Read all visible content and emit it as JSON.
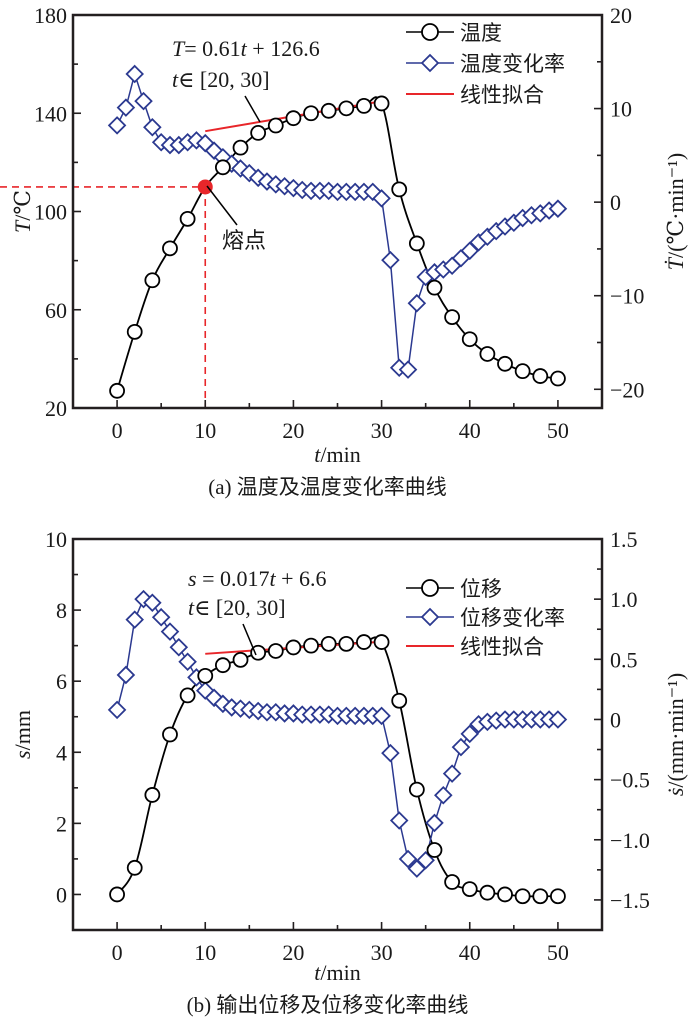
{
  "colors": {
    "primary_series": "#000000",
    "rate_series": "#2b3990",
    "fit_line": "#e8262a",
    "melting_point": "#e8262a",
    "axis": "#231f20"
  },
  "chart_data": [
    {
      "id": "a",
      "type": "line",
      "caption": "(a) 温度及温度变化率曲线",
      "xlabel": {
        "italic": "t",
        "rest": "/min"
      },
      "ylabel_left": {
        "italic": "T",
        "rest": "/℃"
      },
      "ylabel_right": {
        "italic": "Ṫ",
        "rest": "/(℃·min⁻¹)"
      },
      "xlim": [
        -5,
        55
      ],
      "ylim_left": [
        20,
        180
      ],
      "ylim_right": [
        -22,
        20
      ],
      "x_ticks": [
        0,
        10,
        20,
        30,
        40,
        50
      ],
      "x_tick_labels": [
        "0",
        "10",
        "20",
        "30",
        "40",
        "50"
      ],
      "y_left_ticks": [
        20,
        60,
        100,
        140,
        180
      ],
      "y_left_tick_labels": [
        "20",
        "60",
        "100",
        "140",
        "180"
      ],
      "y_right_ticks": [
        -20,
        -10,
        0,
        10,
        20
      ],
      "y_right_tick_labels": [
        "−20",
        "−10",
        "0",
        "10",
        "20"
      ],
      "legend": [
        "温度",
        "温度变化率",
        "线性拟合"
      ],
      "legend_position": "top-right",
      "grid": false,
      "series": [
        {
          "name": "温度",
          "axis": "left",
          "marker": "circle",
          "x": [
            0,
            2,
            4,
            6,
            8,
            10,
            12,
            14,
            16,
            18,
            20,
            22,
            24,
            26,
            28,
            30,
            32,
            34,
            36,
            38,
            40,
            42,
            44,
            46,
            48,
            50
          ],
          "values": [
            27,
            51,
            72,
            85,
            97,
            110,
            118,
            126,
            132,
            135,
            138,
            140,
            141,
            142,
            143,
            144,
            109,
            87,
            69,
            57,
            48,
            42,
            38,
            35,
            33,
            32
          ]
        },
        {
          "name": "温度变化率",
          "axis": "right",
          "marker": "diamond",
          "x": [
            0,
            1,
            2,
            3,
            4,
            5,
            6,
            7,
            8,
            9,
            10,
            11,
            12,
            13,
            14,
            15,
            16,
            17,
            18,
            19,
            20,
            21,
            22,
            23,
            24,
            25,
            26,
            27,
            28,
            29,
            30,
            31,
            32,
            33,
            34,
            35,
            36,
            37,
            38,
            39,
            40,
            41,
            42,
            43,
            44,
            45,
            46,
            47,
            48,
            49,
            50
          ],
          "values": [
            8.2,
            10.1,
            13.7,
            10.8,
            8.0,
            6.4,
            6.1,
            6.1,
            6.4,
            6.6,
            6.3,
            5.5,
            4.8,
            4.1,
            3.6,
            3.1,
            2.6,
            2.2,
            1.9,
            1.7,
            1.5,
            1.3,
            1.2,
            1.2,
            1.2,
            1.1,
            1.1,
            1.1,
            1.1,
            1.1,
            0.4,
            -6.2,
            -17.7,
            -17.9,
            -10.8,
            -8.0,
            -7.5,
            -7.2,
            -6.8,
            -6.0,
            -5.2,
            -4.3,
            -3.7,
            -3.1,
            -2.6,
            -2.2,
            -1.7,
            -1.4,
            -1.2,
            -0.9,
            -0.7
          ]
        },
        {
          "name": "线性拟合",
          "axis": "left",
          "marker": "none",
          "x": [
            10,
            30
          ],
          "values": [
            132.7,
            144.9
          ]
        }
      ],
      "annotations": {
        "fit_equation": {
          "lhs_italic": "T",
          "text": "= 0.61",
          "var": "t",
          "tail": " + 126.6"
        },
        "fit_range": {
          "var": "t",
          "text": "∈  [20, 30]"
        },
        "melting_point_label": "熔点",
        "melting_point": {
          "x": 10,
          "y": 110
        }
      }
    },
    {
      "id": "b",
      "type": "line",
      "caption": "(b) 输出位移及位移变化率曲线",
      "xlabel": {
        "italic": "t",
        "rest": "/min"
      },
      "ylabel_left": {
        "italic": "s",
        "rest": "/mm"
      },
      "ylabel_right": {
        "italic": "ṡ",
        "rest": "/(mm·min⁻¹)"
      },
      "xlim": [
        -5,
        55
      ],
      "ylim_left": [
        -1,
        10
      ],
      "ylim_right": [
        -1.75,
        1.5
      ],
      "x_ticks": [
        0,
        10,
        20,
        30,
        40,
        50
      ],
      "x_tick_labels": [
        "0",
        "10",
        "20",
        "30",
        "40",
        "50"
      ],
      "y_left_ticks": [
        0,
        2,
        4,
        6,
        8,
        10
      ],
      "y_left_tick_labels": [
        "0",
        "2",
        "4",
        "6",
        "8",
        "10"
      ],
      "y_right_ticks": [
        -1.5,
        -1.0,
        -0.5,
        0,
        0.5,
        1.0,
        1.5
      ],
      "y_right_tick_labels": [
        "−1.5",
        "−1.0",
        "−0.5",
        "0",
        "0.5",
        "1.0",
        "1.5"
      ],
      "legend": [
        "位移",
        "位移变化率",
        "线性拟合"
      ],
      "legend_position": "top-right",
      "grid": false,
      "series": [
        {
          "name": "位移",
          "axis": "left",
          "marker": "circle",
          "x": [
            0,
            2,
            4,
            6,
            8,
            10,
            12,
            14,
            16,
            18,
            20,
            22,
            24,
            26,
            28,
            30,
            32,
            34,
            36,
            38,
            40,
            42,
            44,
            46,
            48,
            50
          ],
          "values": [
            0,
            0.75,
            2.8,
            4.5,
            5.6,
            6.15,
            6.45,
            6.6,
            6.8,
            6.85,
            6.95,
            7.0,
            7.05,
            7.05,
            7.1,
            7.1,
            5.45,
            2.95,
            1.25,
            0.35,
            0.15,
            0.05,
            0.0,
            -0.05,
            -0.05,
            -0.05
          ]
        },
        {
          "name": "位移变化率",
          "axis": "right",
          "marker": "diamond",
          "x": [
            0,
            1,
            2,
            3,
            4,
            5,
            6,
            7,
            8,
            9,
            10,
            11,
            12,
            13,
            14,
            15,
            16,
            17,
            18,
            19,
            20,
            21,
            22,
            23,
            24,
            25,
            26,
            27,
            28,
            29,
            30,
            31,
            32,
            33,
            34,
            35,
            36,
            37,
            38,
            39,
            40,
            41,
            42,
            43,
            44,
            45,
            46,
            47,
            48,
            49,
            50
          ],
          "values": [
            0.08,
            0.37,
            0.83,
            1.0,
            0.97,
            0.85,
            0.73,
            0.6,
            0.48,
            0.35,
            0.24,
            0.18,
            0.13,
            0.1,
            0.09,
            0.08,
            0.07,
            0.06,
            0.06,
            0.05,
            0.05,
            0.04,
            0.04,
            0.04,
            0.04,
            0.03,
            0.03,
            0.03,
            0.03,
            0.03,
            0.03,
            -0.28,
            -0.84,
            -1.16,
            -1.24,
            -1.17,
            -0.86,
            -0.63,
            -0.45,
            -0.23,
            -0.12,
            -0.04,
            -0.02,
            -0.01,
            0.0,
            0.0,
            0.0,
            0.0,
            0.0,
            0.0,
            0.0
          ]
        },
        {
          "name": "线性拟合",
          "axis": "left",
          "marker": "none",
          "x": [
            10,
            30
          ],
          "values": [
            6.77,
            7.11
          ]
        }
      ],
      "annotations": {
        "fit_equation": {
          "lhs_italic": "s",
          "text": " = 0.017",
          "var": "t",
          "tail": " + 6.6"
        },
        "fit_range": {
          "var": "t",
          "text": "∈  [20, 30]"
        }
      }
    }
  ]
}
